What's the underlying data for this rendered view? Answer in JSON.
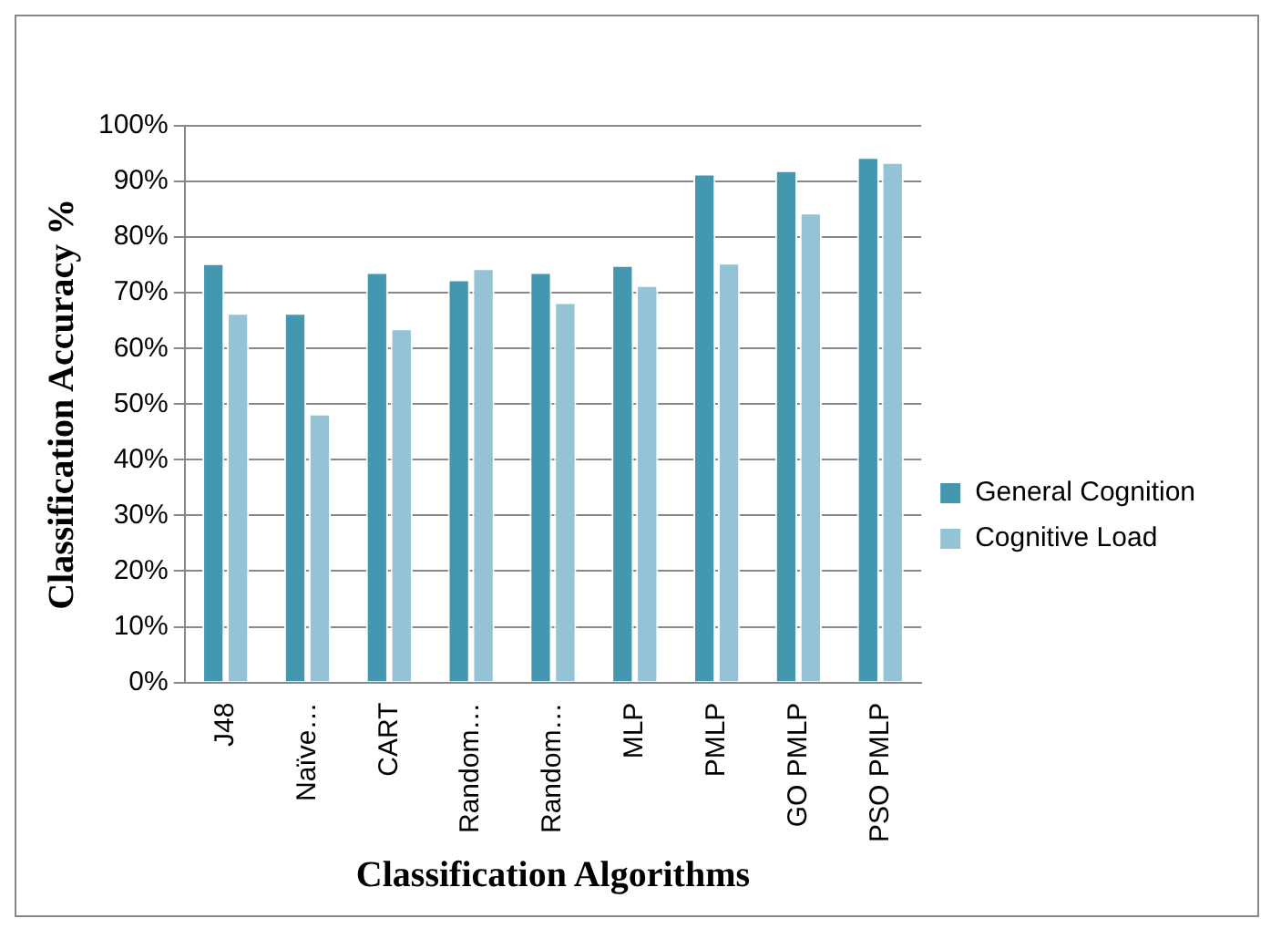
{
  "chart_data": {
    "type": "bar",
    "xlabel": "Classification Algorithms",
    "ylabel": "Classification Accuracy %",
    "categories": [
      "J48",
      "Naïve…",
      "CART",
      "Random…",
      "Random…",
      "MLP",
      "PMLP",
      "GO PMLP",
      "PSO PMLP"
    ],
    "series": [
      {
        "name": "General Cognition",
        "color": "#4398b0",
        "values": [
          75.3,
          66.4,
          73.7,
          72.4,
          73.7,
          75.0,
          91.4,
          92.0,
          94.4
        ]
      },
      {
        "name": "Cognitive Load",
        "color": "#93c3d5",
        "values": [
          66.4,
          48.3,
          63.6,
          74.4,
          68.3,
          71.4,
          75.4,
          84.4,
          93.5
        ]
      }
    ],
    "ylim": [
      0,
      100
    ],
    "yticks": [
      {
        "value": 0,
        "label": "0%"
      },
      {
        "value": 10,
        "label": "10%"
      },
      {
        "value": 20,
        "label": "20%"
      },
      {
        "value": 30,
        "label": "30%"
      },
      {
        "value": 40,
        "label": "40%"
      },
      {
        "value": 50,
        "label": "50%"
      },
      {
        "value": 60,
        "label": "60%"
      },
      {
        "value": 70,
        "label": "70%"
      },
      {
        "value": 80,
        "label": "80%"
      },
      {
        "value": 90,
        "label": "90%"
      },
      {
        "value": 100,
        "label": "100%"
      }
    ],
    "grid": "y",
    "legend": "right"
  }
}
